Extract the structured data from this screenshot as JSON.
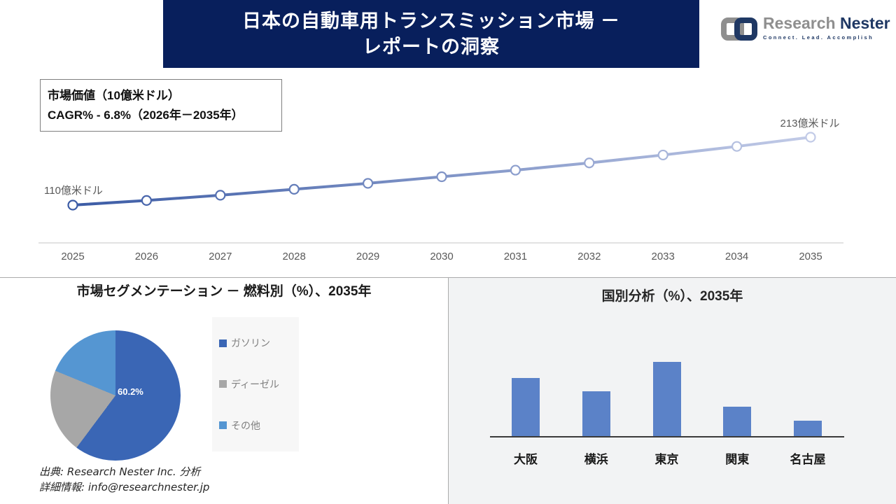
{
  "header": {
    "title_line1": "日本の自動車用トランスミッション市場 －",
    "title_line2": "レポートの洞察"
  },
  "logo": {
    "name_primary": "Research",
    "name_secondary": "Nester",
    "tagline": "Connect. Lead. Accomplish"
  },
  "info_box": {
    "line1": "市場価値（10億米ドル）",
    "line2": "CAGR% - 6.8%（2026年－2035年）"
  },
  "chart_data": [
    {
      "type": "line",
      "title": "市場価値（10億米ドル）",
      "subtitle": "CAGR% - 6.8%（2026年－2035年）",
      "x": [
        2025,
        2026,
        2027,
        2028,
        2029,
        2030,
        2031,
        2032,
        2033,
        2034,
        2035
      ],
      "values": [
        110,
        117,
        125,
        134,
        143,
        153,
        163,
        174,
        186,
        199,
        213
      ],
      "start_label": "110億米ドル",
      "end_label": "213億米ドル",
      "ylim": [
        100,
        230
      ],
      "line_color_start": "#3B5BA5",
      "line_color_end": "#C2CBE7",
      "marker": "open-circle",
      "grid": false
    },
    {
      "type": "pie",
      "title": "市場セグメンテーション － 燃料別（%）、2035年",
      "labels": [
        "ガソリン",
        "ディーゼル",
        "その他"
      ],
      "values": [
        60.2,
        21.0,
        18.8
      ],
      "colors": [
        "#3A66B5",
        "#A7A7A7",
        "#5596D2"
      ],
      "data_label": "60.2%",
      "legend_position": "right"
    },
    {
      "type": "bar",
      "title": "国別分析（%）、2035年",
      "categories": [
        "大阪",
        "横浜",
        "東京",
        "関東",
        "名古屋"
      ],
      "values": [
        26,
        20,
        33,
        13,
        7
      ],
      "bar_color": "#5B82C8",
      "ylim": [
        0,
        35
      ],
      "grid": false
    }
  ],
  "footer": {
    "source": "出典: Research Nester Inc. 分析",
    "contact": "詳細情報: info@researchnester.jp"
  },
  "colors": {
    "banner_bg": "#081F5C",
    "logo_navy": "#1F3864",
    "logo_gray": "#8F8F8F",
    "axis_gray": "#D9D9D9",
    "tick_text": "#595959",
    "panel_bg": "#F2F3F4",
    "divider": "#ABABAB"
  }
}
